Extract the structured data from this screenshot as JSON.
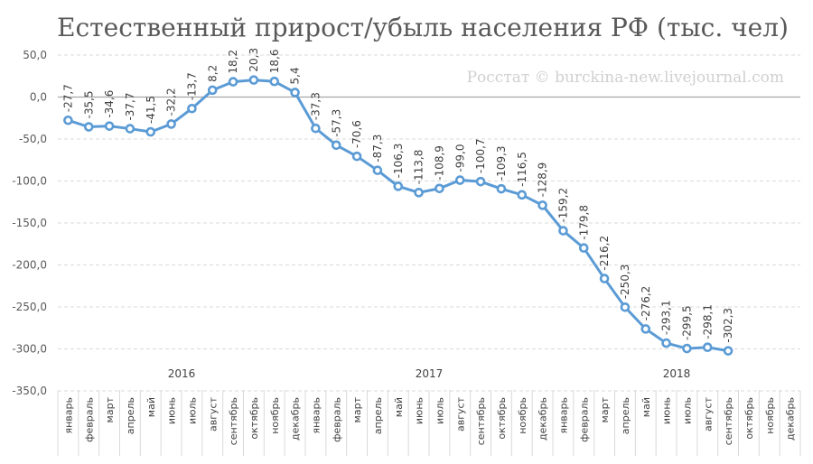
{
  "chart_data": {
    "type": "line",
    "title": "Естественный прирост/убыль населения РФ (тыс. чел)",
    "watermark": "Росстат © burckina-new.livejournal.com",
    "ylim": [
      -350,
      50
    ],
    "yticks": [
      50,
      0,
      -50,
      -100,
      -150,
      -200,
      -250,
      -300,
      -350
    ],
    "ytick_labels": [
      "50,0",
      "0,0",
      "-50,0",
      "-100,0",
      "-150,0",
      "-200,0",
      "-250,0",
      "-300,0",
      "-350,0"
    ],
    "grid": true,
    "colors": {
      "series": "#5b9bd5",
      "title": "#595959",
      "grid": "#d9d9d9"
    },
    "years": [
      {
        "label": "2016",
        "months": [
          "январь",
          "февраль",
          "март",
          "апрель",
          "май",
          "июнь",
          "июль",
          "август",
          "сентябрь",
          "октябрь",
          "ноябрь",
          "декабрь"
        ]
      },
      {
        "label": "2017",
        "months": [
          "январь",
          "февраль",
          "март",
          "апрель",
          "май",
          "июнь",
          "июль",
          "август",
          "сентябрь",
          "октябрь",
          "ноябрь",
          "декабрь"
        ]
      },
      {
        "label": "2018",
        "months": [
          "январь",
          "февраль",
          "март",
          "апрель",
          "май",
          "июнь",
          "июль",
          "август",
          "сентябрь",
          "октябрь",
          "ноябрь",
          "декабрь"
        ]
      }
    ],
    "series": [
      {
        "values": [
          -27.7,
          -35.5,
          -34.6,
          -37.7,
          -41.5,
          -32.2,
          -13.7,
          8.2,
          18.2,
          20.3,
          18.6,
          5.4,
          -37.3,
          -57.3,
          -70.6,
          -87.3,
          -106.3,
          -113.8,
          -108.9,
          -99.0,
          -100.7,
          -109.3,
          -116.5,
          -128.9,
          -159.2,
          -179.8,
          -216.2,
          -250.3,
          -276.2,
          -293.1,
          -299.5,
          -298.1,
          -302.3,
          null,
          null,
          null
        ],
        "labels": [
          "-27,7",
          "-35,5",
          "-34,6",
          "-37,7",
          "-41,5",
          "-32,2",
          "-13,7",
          "8,2",
          "18,2",
          "20,3",
          "18,6",
          "5,4",
          "-37,3",
          "-57,3",
          "-70,6",
          "-87,3",
          "-106,3",
          "-113,8",
          "-108,9",
          "-99,0",
          "-100,7",
          "-109,3",
          "-116,5",
          "-128,9",
          "-159,2",
          "-179,8",
          "-216,2",
          "-250,3",
          "-276,2",
          "-293,1",
          "-299,5",
          "-298,1",
          "-302,3",
          "",
          "",
          ""
        ]
      }
    ]
  }
}
